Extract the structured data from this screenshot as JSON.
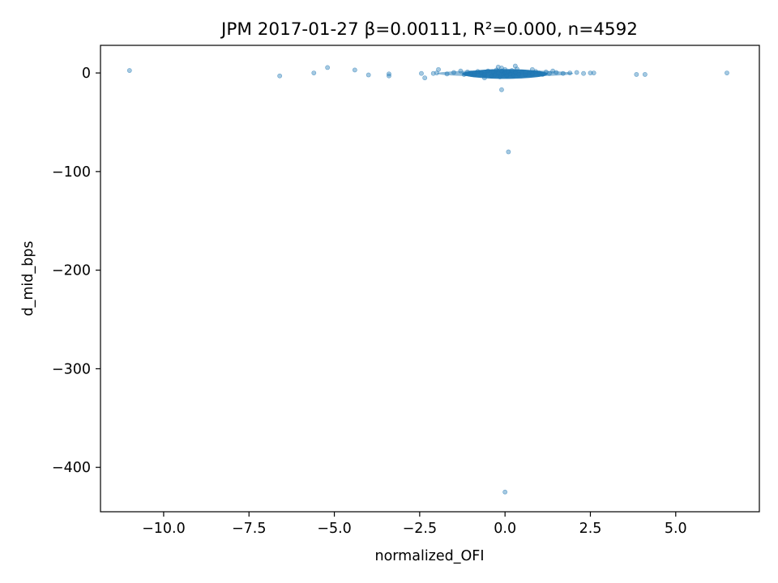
{
  "chart_data": {
    "type": "scatter",
    "title": "JPM 2017-01-27  β=0.00111, R²=0.000, n=4592",
    "xlabel": "normalized_OFI",
    "ylabel": "d_mid_bps",
    "xlim": [
      -11.85,
      7.45
    ],
    "ylim": [
      -445,
      28
    ],
    "x_ticks": [
      -10.0,
      -7.5,
      -5.0,
      -2.5,
      0.0,
      2.5,
      5.0
    ],
    "x_tick_labels": [
      "−10.0",
      "−7.5",
      "−5.0",
      "−2.5",
      "0.0",
      "2.5",
      "5.0"
    ],
    "y_ticks": [
      0,
      -100,
      -200,
      -300,
      -400
    ],
    "y_tick_labels": [
      "0",
      "−100",
      "−200",
      "−300",
      "−400"
    ],
    "grid": false,
    "legend": "none",
    "marker_color": "#1f77b4",
    "marker_alpha": 0.4,
    "series": [
      {
        "points": [
          [
            -11.0,
            2.5
          ],
          [
            -6.6,
            -3.0
          ],
          [
            -5.6,
            0.0
          ],
          [
            -5.2,
            5.5
          ],
          [
            -4.4,
            3.0
          ],
          [
            -4.0,
            -2.0
          ],
          [
            -3.4,
            -1.0
          ],
          [
            -3.4,
            -3.0
          ],
          [
            -2.45,
            -0.5
          ],
          [
            -2.35,
            -5.0
          ],
          [
            -2.1,
            -0.5
          ],
          [
            -2.0,
            0.0
          ],
          [
            -1.95,
            3.5
          ],
          [
            -1.7,
            -1.0
          ],
          [
            -1.5,
            0.5
          ],
          [
            -1.2,
            -1.5
          ],
          [
            -1.1,
            1.0
          ],
          [
            -1.0,
            0.0
          ],
          [
            -0.9,
            -2.0
          ],
          [
            -0.8,
            1.5
          ],
          [
            -0.7,
            0.0
          ],
          [
            -0.6,
            -1.5
          ],
          [
            -0.5,
            2.0
          ],
          [
            -0.4,
            -3.0
          ],
          [
            -0.35,
            1.0
          ],
          [
            -0.3,
            -2.0
          ],
          [
            -0.25,
            3.0
          ],
          [
            -0.2,
            0.0
          ],
          [
            -0.15,
            -4.0
          ],
          [
            -0.1,
            2.0
          ],
          [
            -0.05,
            -1.0
          ],
          [
            0.0,
            0.0
          ],
          [
            0.0,
            3.5
          ],
          [
            0.05,
            -3.0
          ],
          [
            0.1,
            1.5
          ],
          [
            0.15,
            -1.0
          ],
          [
            0.2,
            2.5
          ],
          [
            0.25,
            -2.5
          ],
          [
            0.3,
            0.5
          ],
          [
            0.35,
            4.0
          ],
          [
            0.4,
            -1.5
          ],
          [
            0.5,
            1.0
          ],
          [
            0.6,
            -2.0
          ],
          [
            0.7,
            0.5
          ],
          [
            0.8,
            -1.0
          ],
          [
            0.9,
            1.5
          ],
          [
            1.0,
            0.0
          ],
          [
            1.1,
            -1.5
          ],
          [
            1.2,
            1.0
          ],
          [
            1.3,
            -0.5
          ],
          [
            1.5,
            0.5
          ],
          [
            1.7,
            -0.5
          ],
          [
            1.9,
            0.0
          ],
          [
            2.1,
            0.5
          ],
          [
            2.3,
            -0.5
          ],
          [
            2.5,
            0.0
          ],
          [
            2.6,
            0.0
          ],
          [
            3.85,
            -1.5
          ],
          [
            4.1,
            -1.5
          ],
          [
            6.5,
            0.0
          ],
          [
            -0.1,
            -17.0
          ],
          [
            0.1,
            -80.0
          ],
          [
            0.0,
            -425.0
          ],
          [
            0.3,
            7.0
          ],
          [
            -0.1,
            5.0
          ],
          [
            -0.6,
            -5.0
          ],
          [
            0.8,
            3.5
          ],
          [
            -1.3,
            2.0
          ],
          [
            1.4,
            2.0
          ],
          [
            -0.2,
            6.0
          ]
        ]
      }
    ]
  }
}
